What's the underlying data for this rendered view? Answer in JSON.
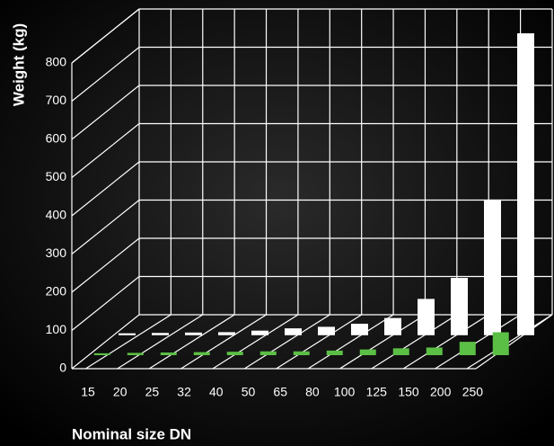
{
  "chart_data": {
    "type": "bar3d",
    "categories": [
      "15",
      "20",
      "25",
      "32",
      "40",
      "50",
      "65",
      "80",
      "100",
      "125",
      "150",
      "200",
      "250"
    ],
    "series": [
      {
        "color": "#5bbf45",
        "values": [
          5,
          6,
          7,
          8,
          9,
          10,
          10,
          12,
          15,
          18,
          20,
          35,
          60
        ]
      },
      {
        "color": "#ffffff",
        "values": [
          5,
          6,
          7,
          8,
          12,
          18,
          22,
          30,
          45,
          95,
          150,
          355,
          790
        ]
      }
    ],
    "ylim": [
      0,
      800
    ],
    "yticks": [
      0,
      100,
      200,
      300,
      400,
      500,
      600,
      700,
      800
    ],
    "ylabel": "Weight (kg)",
    "xlabel": "Nominal size DN"
  }
}
